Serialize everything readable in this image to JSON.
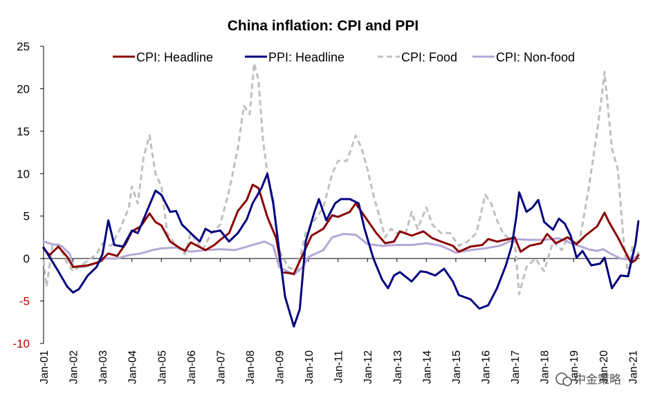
{
  "chart_data": {
    "type": "line",
    "title": "China inflation: CPI and PPI",
    "xlabel": "",
    "ylabel": "",
    "ylim": [
      -10,
      25
    ],
    "yticks": [
      25,
      20,
      15,
      10,
      5,
      0,
      -5,
      -10
    ],
    "x_tick_labels": [
      "Jan-01",
      "Jan-02",
      "Jan-03",
      "Jan-04",
      "Jan-05",
      "Jan-06",
      "Jan-07",
      "Jan-08",
      "Jan-09",
      "Jan-10",
      "Jan-11",
      "Jan-12",
      "Jan-13",
      "Jan-14",
      "Jan-15",
      "Jan-16",
      "Jan-17",
      "Jan-18",
      "Jan-19",
      "Jan-20",
      "Jan-21"
    ],
    "x_start_year": 2001,
    "x_end_year": 2021.25,
    "grid": false,
    "legend_position": "top",
    "series": [
      {
        "name": "CPI: Headline",
        "color": "#8b0000",
        "dash": "none",
        "points": [
          [
            2001,
            1.2
          ],
          [
            2001.2,
            0.4
          ],
          [
            2001.5,
            1.4
          ],
          [
            2001.8,
            0.2
          ],
          [
            2002,
            -1.0
          ],
          [
            2002.5,
            -0.8
          ],
          [
            2002.9,
            -0.4
          ],
          [
            2003.2,
            0.6
          ],
          [
            2003.5,
            0.3
          ],
          [
            2003.8,
            1.8
          ],
          [
            2004,
            3.2
          ],
          [
            2004.3,
            3.8
          ],
          [
            2004.6,
            5.3
          ],
          [
            2004.8,
            4.3
          ],
          [
            2005,
            3.9
          ],
          [
            2005.3,
            2.0
          ],
          [
            2005.6,
            1.3
          ],
          [
            2005.8,
            0.9
          ],
          [
            2006,
            1.9
          ],
          [
            2006.5,
            1.0
          ],
          [
            2006.8,
            1.6
          ],
          [
            2007,
            2.2
          ],
          [
            2007.3,
            3.0
          ],
          [
            2007.6,
            5.6
          ],
          [
            2007.9,
            6.9
          ],
          [
            2008.1,
            8.7
          ],
          [
            2008.3,
            8.3
          ],
          [
            2008.6,
            4.9
          ],
          [
            2008.9,
            2.4
          ],
          [
            2009.1,
            -1.6
          ],
          [
            2009.5,
            -1.8
          ],
          [
            2009.9,
            1.2
          ],
          [
            2010.1,
            2.7
          ],
          [
            2010.5,
            3.5
          ],
          [
            2010.8,
            5.1
          ],
          [
            2011,
            4.9
          ],
          [
            2011.4,
            5.5
          ],
          [
            2011.6,
            6.5
          ],
          [
            2011.8,
            5.5
          ],
          [
            2012,
            4.5
          ],
          [
            2012.3,
            3.0
          ],
          [
            2012.6,
            1.8
          ],
          [
            2012.9,
            2.0
          ],
          [
            2013.1,
            3.2
          ],
          [
            2013.5,
            2.7
          ],
          [
            2013.9,
            3.2
          ],
          [
            2014.2,
            2.4
          ],
          [
            2014.5,
            2.0
          ],
          [
            2014.9,
            1.5
          ],
          [
            2015.1,
            0.8
          ],
          [
            2015.5,
            1.4
          ],
          [
            2015.9,
            1.6
          ],
          [
            2016.1,
            2.3
          ],
          [
            2016.4,
            2.0
          ],
          [
            2016.8,
            2.3
          ],
          [
            2017,
            2.5
          ],
          [
            2017.2,
            0.8
          ],
          [
            2017.5,
            1.5
          ],
          [
            2017.9,
            1.8
          ],
          [
            2018.1,
            2.9
          ],
          [
            2018.4,
            1.8
          ],
          [
            2018.8,
            2.5
          ],
          [
            2019.1,
            1.7
          ],
          [
            2019.4,
            2.7
          ],
          [
            2019.8,
            3.8
          ],
          [
            2020.05,
            5.4
          ],
          [
            2020.2,
            4.3
          ],
          [
            2020.5,
            2.5
          ],
          [
            2020.8,
            0.5
          ],
          [
            2020.95,
            -0.5
          ],
          [
            2021.1,
            -0.2
          ],
          [
            2021.2,
            0.4
          ]
        ]
      },
      {
        "name": "PPI: Headline",
        "color": "#000080",
        "dash": "none",
        "points": [
          [
            2001,
            1.3
          ],
          [
            2001.2,
            0.2
          ],
          [
            2001.5,
            -1.5
          ],
          [
            2001.8,
            -3.3
          ],
          [
            2002,
            -4.0
          ],
          [
            2002.2,
            -3.6
          ],
          [
            2002.5,
            -2.0
          ],
          [
            2002.8,
            -1.0
          ],
          [
            2003,
            0.5
          ],
          [
            2003.2,
            4.5
          ],
          [
            2003.4,
            1.6
          ],
          [
            2003.7,
            1.4
          ],
          [
            2004,
            3.3
          ],
          [
            2004.2,
            3.0
          ],
          [
            2004.5,
            5.5
          ],
          [
            2004.8,
            8.0
          ],
          [
            2005,
            7.5
          ],
          [
            2005.3,
            5.5
          ],
          [
            2005.5,
            5.6
          ],
          [
            2005.7,
            4.0
          ],
          [
            2006,
            3.0
          ],
          [
            2006.3,
            2.0
          ],
          [
            2006.5,
            3.5
          ],
          [
            2006.7,
            3.1
          ],
          [
            2007,
            3.3
          ],
          [
            2007.3,
            2.0
          ],
          [
            2007.6,
            3.0
          ],
          [
            2007.9,
            4.6
          ],
          [
            2008.1,
            6.5
          ],
          [
            2008.4,
            8.3
          ],
          [
            2008.6,
            10.0
          ],
          [
            2008.8,
            6.5
          ],
          [
            2009,
            1.0
          ],
          [
            2009.2,
            -4.5
          ],
          [
            2009.5,
            -8.0
          ],
          [
            2009.7,
            -6.0
          ],
          [
            2009.9,
            2.0
          ],
          [
            2010.2,
            5.5
          ],
          [
            2010.35,
            7.0
          ],
          [
            2010.6,
            4.5
          ],
          [
            2010.9,
            6.5
          ],
          [
            2011.1,
            7.0
          ],
          [
            2011.4,
            7.0
          ],
          [
            2011.7,
            6.5
          ],
          [
            2011.9,
            3.5
          ],
          [
            2012.2,
            0.0
          ],
          [
            2012.5,
            -2.5
          ],
          [
            2012.7,
            -3.5
          ],
          [
            2012.9,
            -2.0
          ],
          [
            2013.1,
            -1.6
          ],
          [
            2013.5,
            -2.7
          ],
          [
            2013.8,
            -1.5
          ],
          [
            2014,
            -1.6
          ],
          [
            2014.3,
            -2.0
          ],
          [
            2014.6,
            -1.2
          ],
          [
            2014.9,
            -2.7
          ],
          [
            2015.1,
            -4.3
          ],
          [
            2015.5,
            -4.8
          ],
          [
            2015.8,
            -5.9
          ],
          [
            2016.1,
            -5.5
          ],
          [
            2016.4,
            -3.5
          ],
          [
            2016.7,
            -0.8
          ],
          [
            2016.9,
            1.5
          ],
          [
            2017.05,
            4.8
          ],
          [
            2017.15,
            7.8
          ],
          [
            2017.4,
            5.5
          ],
          [
            2017.6,
            6.0
          ],
          [
            2017.8,
            6.9
          ],
          [
            2018,
            4.3
          ],
          [
            2018.3,
            3.4
          ],
          [
            2018.5,
            4.7
          ],
          [
            2018.7,
            4.1
          ],
          [
            2018.9,
            2.7
          ],
          [
            2019.1,
            0.1
          ],
          [
            2019.3,
            0.9
          ],
          [
            2019.6,
            -0.8
          ],
          [
            2019.9,
            -0.6
          ],
          [
            2020.05,
            0.1
          ],
          [
            2020.3,
            -3.5
          ],
          [
            2020.6,
            -2.0
          ],
          [
            2020.85,
            -2.1
          ],
          [
            2021.0,
            0.3
          ],
          [
            2021.1,
            1.7
          ],
          [
            2021.2,
            4.4
          ]
        ]
      },
      {
        "name": "CPI: Food",
        "color": "#bfbfbf",
        "dash": "8,5",
        "points": [
          [
            2001,
            -0.2
          ],
          [
            2001.1,
            -3.3
          ],
          [
            2001.3,
            1.5
          ],
          [
            2001.5,
            1.7
          ],
          [
            2001.8,
            -0.5
          ],
          [
            2002,
            -1.5
          ],
          [
            2002.4,
            -0.5
          ],
          [
            2002.8,
            0.5
          ],
          [
            2003,
            1.8
          ],
          [
            2003.3,
            1.5
          ],
          [
            2003.6,
            3.5
          ],
          [
            2003.9,
            6.0
          ],
          [
            2004,
            8.5
          ],
          [
            2004.2,
            6.5
          ],
          [
            2004.4,
            12.0
          ],
          [
            2004.6,
            14.5
          ],
          [
            2004.8,
            10.0
          ],
          [
            2005,
            8.5
          ],
          [
            2005.2,
            3.0
          ],
          [
            2005.5,
            1.5
          ],
          [
            2005.8,
            0.5
          ],
          [
            2006,
            3.0
          ],
          [
            2006.4,
            1.0
          ],
          [
            2006.7,
            3.0
          ],
          [
            2007,
            4.0
          ],
          [
            2007.3,
            8.0
          ],
          [
            2007.6,
            13.0
          ],
          [
            2007.8,
            18.0
          ],
          [
            2008.0,
            17.0
          ],
          [
            2008.15,
            23.0
          ],
          [
            2008.3,
            21.0
          ],
          [
            2008.45,
            14.0
          ],
          [
            2008.6,
            10.0
          ],
          [
            2008.8,
            7.0
          ],
          [
            2009,
            1.0
          ],
          [
            2009.3,
            -1.0
          ],
          [
            2009.6,
            -1.5
          ],
          [
            2009.9,
            3.0
          ],
          [
            2010.2,
            4.5
          ],
          [
            2010.5,
            6.0
          ],
          [
            2010.8,
            10.0
          ],
          [
            2011,
            11.5
          ],
          [
            2011.3,
            11.5
          ],
          [
            2011.6,
            14.5
          ],
          [
            2011.8,
            13.0
          ],
          [
            2012,
            10.5
          ],
          [
            2012.2,
            7.5
          ],
          [
            2012.4,
            5.0
          ],
          [
            2012.6,
            2.5
          ],
          [
            2012.8,
            3.5
          ],
          [
            2013,
            3.0
          ],
          [
            2013.3,
            3.0
          ],
          [
            2013.5,
            5.5
          ],
          [
            2013.7,
            3.5
          ],
          [
            2014,
            6.0
          ],
          [
            2014.2,
            4.0
          ],
          [
            2014.5,
            3.0
          ],
          [
            2014.8,
            3.0
          ],
          [
            2015.1,
            1.5
          ],
          [
            2015.4,
            2.0
          ],
          [
            2015.7,
            3.0
          ],
          [
            2016,
            7.5
          ],
          [
            2016.2,
            6.5
          ],
          [
            2016.4,
            4.5
          ],
          [
            2016.6,
            3.0
          ],
          [
            2016.9,
            2.0
          ],
          [
            2017.0,
            2.0
          ],
          [
            2017.15,
            -4.2
          ],
          [
            2017.4,
            -1.0
          ],
          [
            2017.7,
            0.0
          ],
          [
            2018,
            -1.5
          ],
          [
            2018.3,
            2.0
          ],
          [
            2018.6,
            1.0
          ],
          [
            2018.8,
            2.5
          ],
          [
            2019.0,
            2.0
          ],
          [
            2019.2,
            2.0
          ],
          [
            2019.5,
            8.0
          ],
          [
            2019.8,
            15.0
          ],
          [
            2019.95,
            19.0
          ],
          [
            2020.05,
            22.0
          ],
          [
            2020.3,
            13.0
          ],
          [
            2020.5,
            10.5
          ],
          [
            2020.7,
            2.0
          ],
          [
            2020.85,
            -2.0
          ],
          [
            2021.0,
            1.5
          ],
          [
            2021.1,
            -0.2
          ],
          [
            2021.2,
            0.8
          ]
        ]
      },
      {
        "name": "CPI: Non-food",
        "color": "#b4a7d6",
        "dash": "none",
        "points": [
          [
            2001,
            2.0
          ],
          [
            2001.3,
            1.7
          ],
          [
            2001.6,
            1.5
          ],
          [
            2001.9,
            0.5
          ],
          [
            2002,
            -1.0
          ],
          [
            2002.4,
            -1.0
          ],
          [
            2002.8,
            -0.5
          ],
          [
            2003.1,
            0.0
          ],
          [
            2003.5,
            0.0
          ],
          [
            2003.9,
            0.4
          ],
          [
            2004.3,
            0.6
          ],
          [
            2004.7,
            1.0
          ],
          [
            2005,
            1.2
          ],
          [
            2005.5,
            1.3
          ],
          [
            2006,
            0.8
          ],
          [
            2006.5,
            1.0
          ],
          [
            2007,
            1.1
          ],
          [
            2007.5,
            1.0
          ],
          [
            2008,
            1.5
          ],
          [
            2008.5,
            2.0
          ],
          [
            2008.8,
            1.5
          ],
          [
            2009,
            -1.0
          ],
          [
            2009.5,
            -1.9
          ],
          [
            2009.8,
            -1.0
          ],
          [
            2010,
            0.2
          ],
          [
            2010.5,
            1.0
          ],
          [
            2010.8,
            2.5
          ],
          [
            2011.2,
            2.9
          ],
          [
            2011.6,
            2.8
          ],
          [
            2012,
            1.7
          ],
          [
            2012.5,
            1.5
          ],
          [
            2013,
            1.6
          ],
          [
            2013.5,
            1.6
          ],
          [
            2014,
            1.8
          ],
          [
            2014.5,
            1.5
          ],
          [
            2015,
            0.7
          ],
          [
            2015.5,
            1.0
          ],
          [
            2016,
            1.2
          ],
          [
            2016.5,
            1.5
          ],
          [
            2017,
            2.3
          ],
          [
            2017.5,
            2.2
          ],
          [
            2018,
            2.2
          ],
          [
            2018.5,
            2.4
          ],
          [
            2019,
            1.7
          ],
          [
            2019.5,
            1.1
          ],
          [
            2019.8,
            0.9
          ],
          [
            2020,
            1.1
          ],
          [
            2020.3,
            0.5
          ],
          [
            2020.6,
            0.0
          ],
          [
            2020.9,
            -0.1
          ],
          [
            2021.0,
            -0.1
          ],
          [
            2021.2,
            0.5
          ]
        ]
      }
    ]
  },
  "watermark": "中金策略"
}
